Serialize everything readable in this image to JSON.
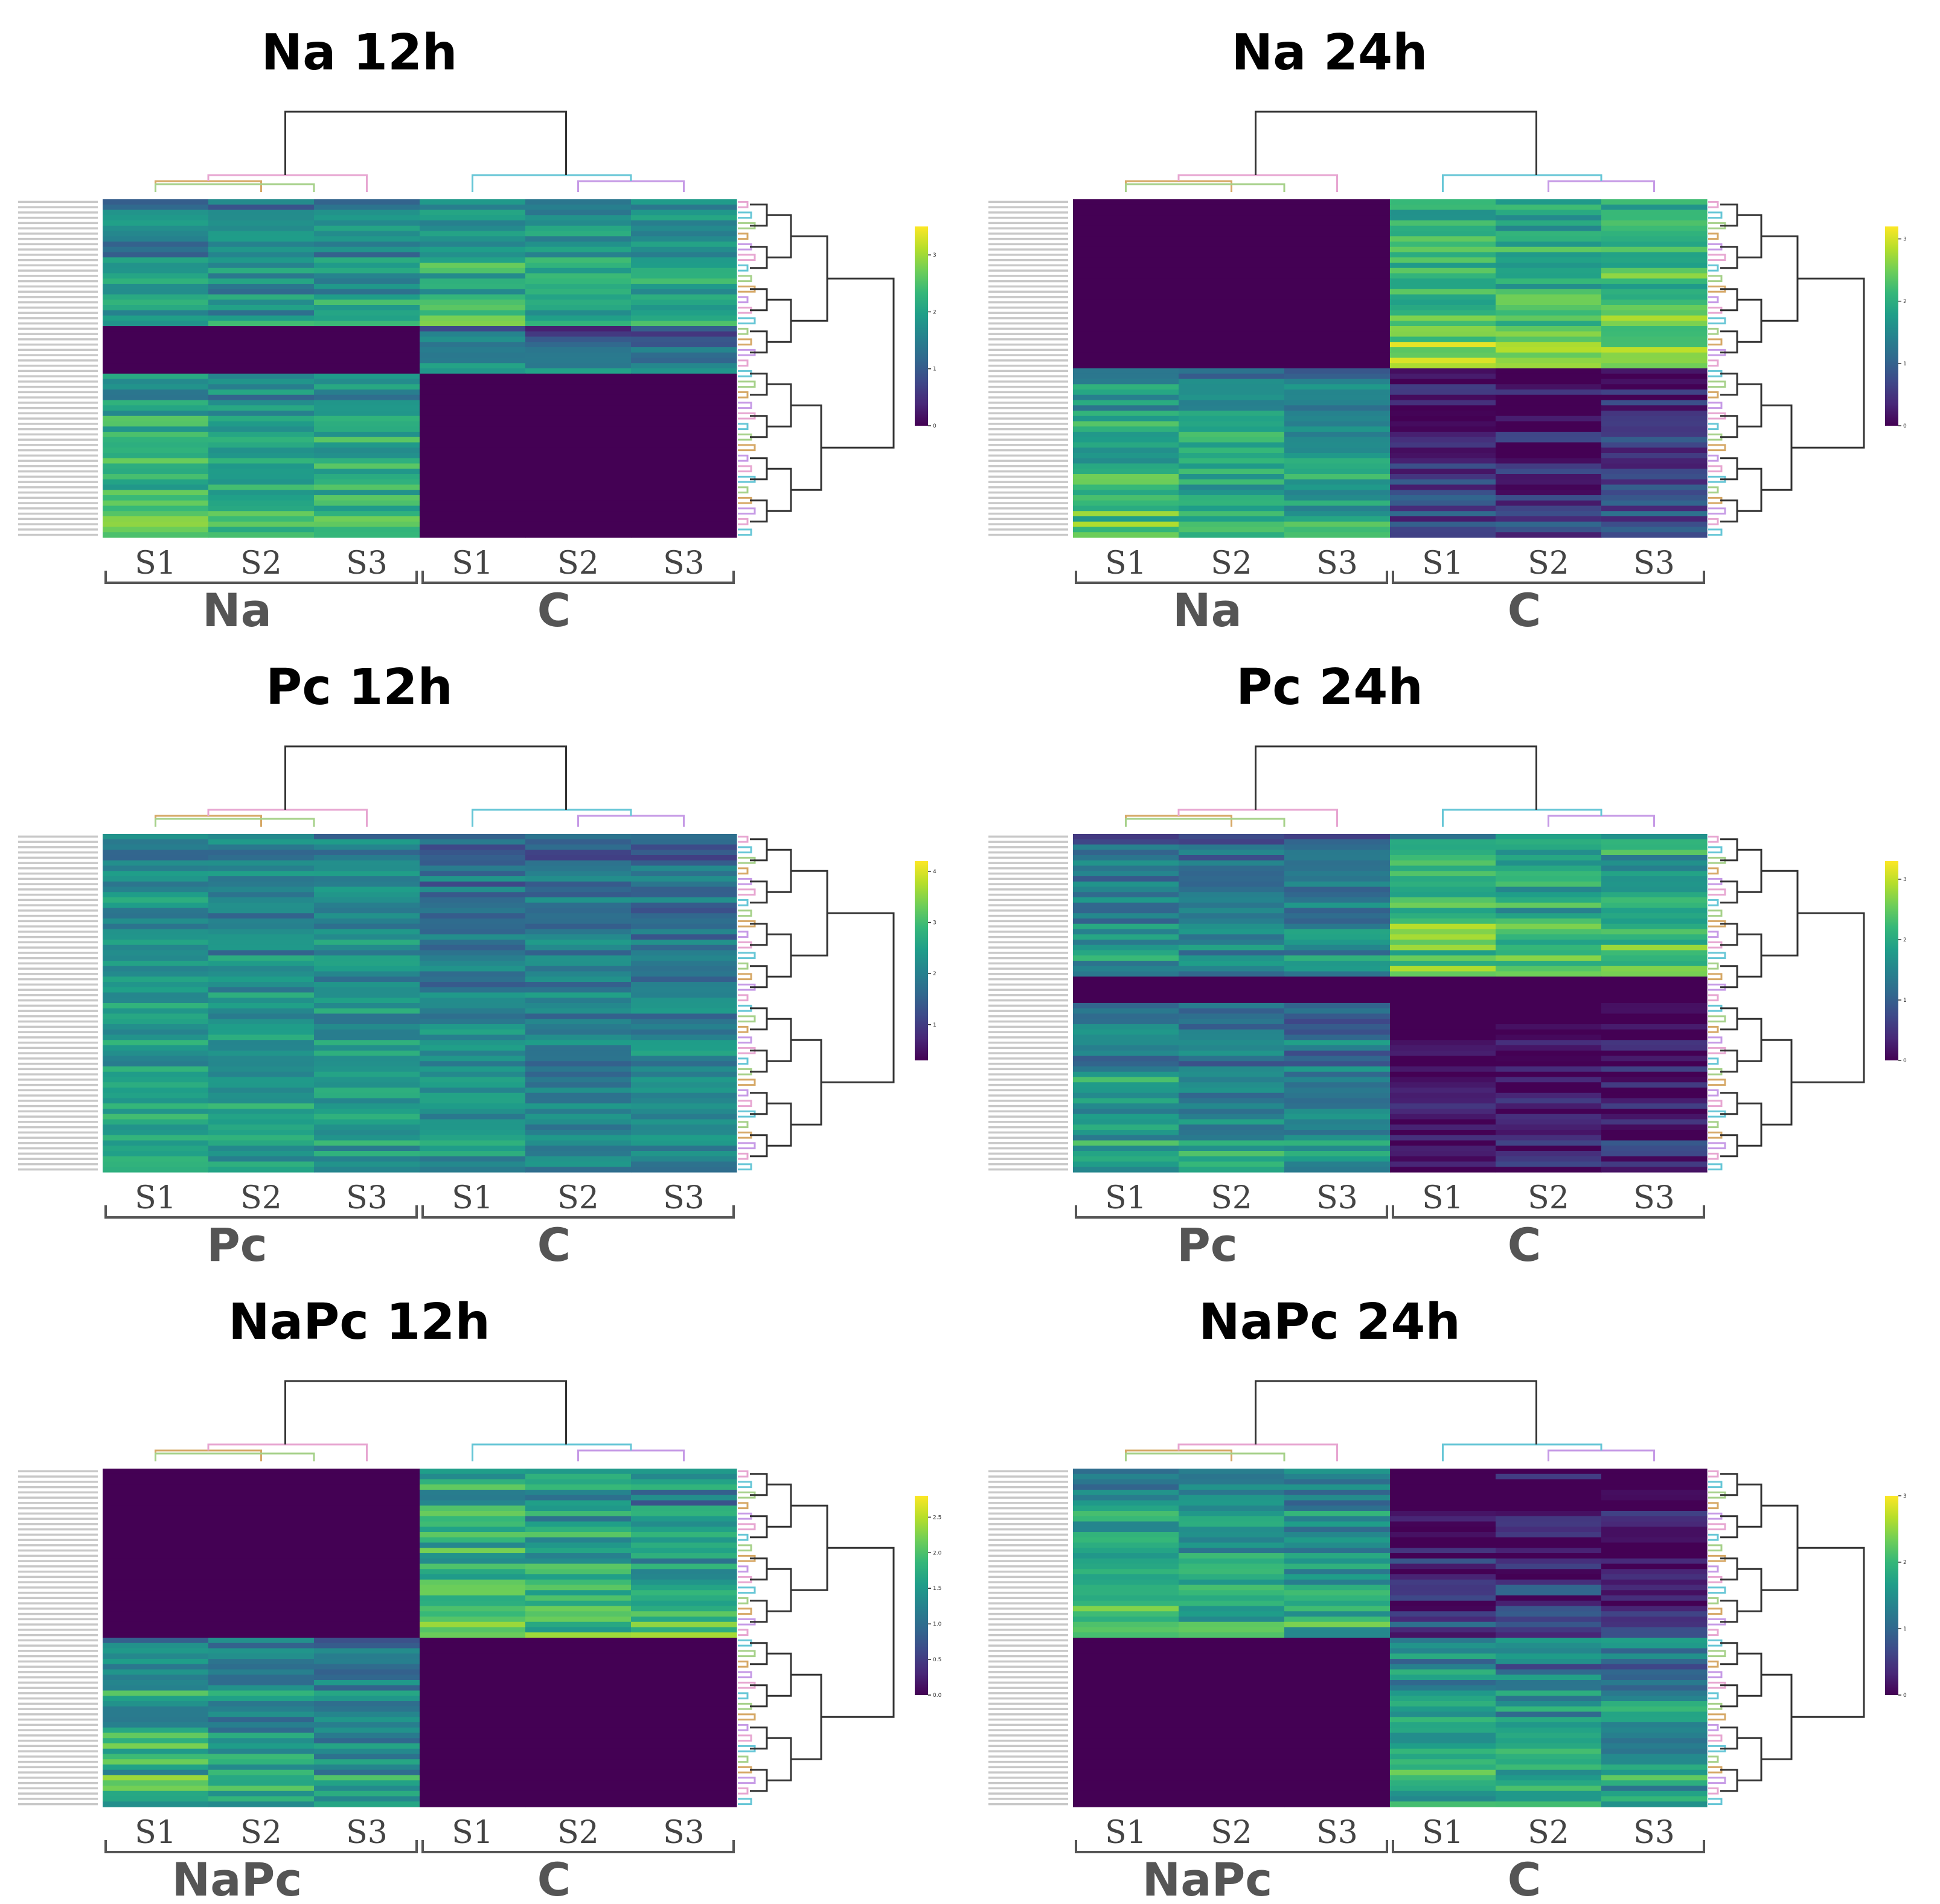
{
  "figure": {
    "description_colormap": "viridis",
    "colors": {
      "viridis": [
        "#440154",
        "#482878",
        "#3e4989",
        "#31688e",
        "#26828e",
        "#1f9e89",
        "#35b779",
        "#6ece58",
        "#b5de2b",
        "#fde725"
      ],
      "dendro_dark": "#333333",
      "dendro_pink": "#e7a6d1",
      "dendro_green": "#a6d18a",
      "dendro_orange": "#d6a866",
      "dendro_cyan": "#66c6d6",
      "dendro_violet": "#c69ae6"
    }
  },
  "chart_data": [
    {
      "id": "na12",
      "type": "heatmap",
      "title": "Na 12h",
      "columns": [
        "S1",
        "S2",
        "S3",
        "S1",
        "S2",
        "S3"
      ],
      "groups": [
        "Na",
        "C"
      ],
      "colorbar": {
        "min": 0,
        "max": 3.5,
        "ticks": [
          "0",
          "1",
          "2",
          "3"
        ]
      },
      "row_count": 64,
      "blocks": [
        {
          "rows": 24,
          "values": [
            1.7,
            1.6,
            1.7,
            2.0,
            1.9,
            2.0
          ]
        },
        {
          "rows": 9,
          "values": [
            0,
            0,
            0,
            1.5,
            1.3,
            1.2
          ]
        },
        {
          "rows": 31,
          "values": [
            2.2,
            2.0,
            2.1,
            0,
            0,
            0
          ]
        }
      ]
    },
    {
      "id": "na24",
      "type": "heatmap",
      "title": "Na 24h",
      "columns": [
        "S1",
        "S2",
        "S3",
        "S1",
        "S2",
        "S3"
      ],
      "groups": [
        "Na",
        "C"
      ],
      "colorbar": {
        "min": 0,
        "max": 3.2,
        "ticks": [
          "0",
          "1",
          "2",
          "3"
        ]
      },
      "row_count": 64,
      "blocks": [
        {
          "rows": 32,
          "values": [
            0,
            0,
            0,
            2.2,
            2.1,
            2.2
          ]
        },
        {
          "rows": 32,
          "values": [
            1.9,
            1.7,
            1.6,
            0.3,
            0.2,
            0.4
          ]
        }
      ]
    },
    {
      "id": "pc12",
      "type": "heatmap",
      "title": "Pc 12h",
      "columns": [
        "S1",
        "S2",
        "S3",
        "S1",
        "S2",
        "S3"
      ],
      "groups": [
        "Pc",
        "C"
      ],
      "colorbar": {
        "min": 0.3,
        "max": 4.2,
        "ticks": [
          "1",
          "2",
          "3",
          "4"
        ]
      },
      "row_count": 64,
      "blocks": [
        {
          "rows": 64,
          "values": [
            2.3,
            2.2,
            2.2,
            2.0,
            1.9,
            1.9
          ]
        }
      ]
    },
    {
      "id": "pc24",
      "type": "heatmap",
      "title": "Pc 24h",
      "columns": [
        "S1",
        "S2",
        "S3",
        "S1",
        "S2",
        "S3"
      ],
      "groups": [
        "Pc",
        "C"
      ],
      "colorbar": {
        "min": 0,
        "max": 3.3,
        "ticks": [
          "0",
          "1",
          "2",
          "3"
        ]
      },
      "row_count": 64,
      "blocks": [
        {
          "rows": 27,
          "values": [
            1.5,
            1.4,
            1.4,
            2.2,
            2.1,
            2.1
          ]
        },
        {
          "rows": 5,
          "values": [
            0,
            0,
            0,
            0,
            0,
            0
          ]
        },
        {
          "rows": 32,
          "values": [
            1.7,
            1.5,
            1.4,
            0.1,
            0.1,
            0.2
          ]
        }
      ]
    },
    {
      "id": "napc12",
      "type": "heatmap",
      "title": "NaPc  12h",
      "columns": [
        "S1",
        "S2",
        "S3",
        "S1",
        "S2",
        "S3"
      ],
      "groups": [
        "NaPc",
        "C"
      ],
      "colorbar": {
        "min": 0,
        "max": 2.8,
        "ticks": [
          "0.0",
          "0.5",
          "1.0",
          "1.5",
          "2.0",
          "2.5"
        ]
      },
      "row_count": 64,
      "blocks": [
        {
          "rows": 32,
          "values": [
            0,
            0,
            0,
            1.8,
            1.7,
            1.6
          ]
        },
        {
          "rows": 32,
          "values": [
            1.6,
            1.4,
            1.3,
            0,
            0,
            0
          ]
        }
      ]
    },
    {
      "id": "napc24",
      "type": "heatmap",
      "title": "NaPc 24h",
      "columns": [
        "S1",
        "S2",
        "S3",
        "S1",
        "S2",
        "S3"
      ],
      "groups": [
        "NaPc",
        "C"
      ],
      "colorbar": {
        "min": 0,
        "max": 3.0,
        "ticks": [
          "0",
          "1",
          "2",
          "3"
        ]
      },
      "row_count": 64,
      "blocks": [
        {
          "rows": 32,
          "values": [
            1.8,
            1.7,
            1.6,
            0.2,
            0.2,
            0.1
          ]
        },
        {
          "rows": 32,
          "values": [
            0,
            0,
            0,
            1.6,
            1.5,
            1.4
          ]
        }
      ]
    }
  ]
}
